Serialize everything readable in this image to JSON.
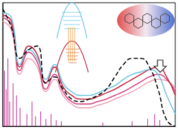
{
  "chart_data": {
    "type": "line",
    "x": [
      0,
      5,
      10,
      15,
      20,
      25,
      30,
      35,
      40,
      45,
      50,
      55,
      60,
      65,
      70,
      75,
      80,
      85,
      90,
      95,
      100
    ],
    "xlim": [
      0,
      100
    ],
    "xticks": [
      0,
      100
    ],
    "ylim": [
      0,
      100
    ],
    "yticks": [
      0,
      100
    ],
    "grid": false,
    "tick_labels": false,
    "series": [
      {
        "color": "#f0a0b4",
        "line_style": "solid",
        "values": [
          85,
          78,
          42,
          55,
          48,
          28,
          38,
          25,
          18,
          15,
          15,
          17,
          19,
          22,
          25,
          28,
          32,
          36,
          38,
          37,
          30
        ]
      },
      {
        "color": "#d0407e",
        "line_style": "solid",
        "values": [
          88,
          82,
          45,
          60,
          52,
          30,
          42,
          28,
          20,
          18,
          18,
          20,
          22,
          25,
          28,
          32,
          36,
          40,
          42,
          38,
          28
        ]
      },
      {
        "color": "#c02840",
        "line_style": "solid",
        "values": [
          90,
          85,
          48,
          65,
          58,
          35,
          48,
          32,
          25,
          22,
          22,
          24,
          27,
          30,
          34,
          38,
          42,
          46,
          48,
          40,
          25
        ]
      },
      {
        "color": "#6ec6e6",
        "line_style": "solid",
        "values": [
          92,
          88,
          50,
          62,
          55,
          38,
          50,
          35,
          28,
          25,
          25,
          27,
          30,
          33,
          38,
          42,
          44,
          46,
          42,
          25,
          10
        ]
      },
      {
        "color": "#000000",
        "line_style": "dashed",
        "values": [
          95,
          80,
          55,
          62,
          65,
          35,
          40,
          30,
          22,
          20,
          22,
          25,
          30,
          40,
          50,
          55,
          55,
          48,
          30,
          5,
          0
        ]
      },
      {
        "type": "bar",
        "color": "#c0208a",
        "x": [
          1,
          2,
          3,
          4,
          6,
          8,
          10,
          14,
          17,
          19,
          22,
          25,
          28,
          31,
          34,
          58,
          75,
          84,
          88,
          91
        ],
        "values": [
          45,
          30,
          55,
          20,
          35,
          25,
          15,
          10,
          20,
          8,
          12,
          6,
          10,
          5,
          4,
          3,
          4,
          6,
          10,
          5
        ]
      }
    ]
  }
}
